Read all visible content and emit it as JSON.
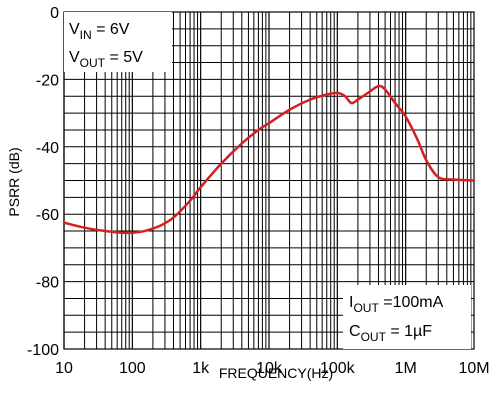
{
  "chart_data": {
    "type": "line",
    "xlabel": "FREQUENCY(Hz)",
    "ylabel": "PSRR (dB)",
    "x_scale": "log",
    "xlim": [
      10,
      10000000
    ],
    "ylim": [
      -100,
      0
    ],
    "grid": true,
    "x_ticks": [
      {
        "value": 10,
        "label": "10"
      },
      {
        "value": 100,
        "label": "100"
      },
      {
        "value": 1000,
        "label": "1k"
      },
      {
        "value": 10000,
        "label": "10k"
      },
      {
        "value": 100000,
        "label": "100k"
      },
      {
        "value": 1000000,
        "label": "1M"
      },
      {
        "value": 10000000,
        "label": "10M"
      }
    ],
    "y_ticks": [
      {
        "value": 0,
        "label": "0"
      },
      {
        "value": -20,
        "label": "-20"
      },
      {
        "value": -40,
        "label": "-40"
      },
      {
        "value": -60,
        "label": "-60"
      },
      {
        "value": -80,
        "label": "-80"
      },
      {
        "value": -100,
        "label": "-100"
      }
    ],
    "series": [
      {
        "color": "#d62020",
        "x": [
          10,
          20,
          40,
          70,
          100,
          150,
          250,
          400,
          700,
          1000,
          2000,
          4000,
          7000,
          10000,
          20000,
          40000,
          70000,
          100000,
          130000,
          160000,
          200000,
          280000,
          400000,
          500000,
          700000,
          1000000,
          1500000,
          2000000,
          3000000,
          5000000,
          10000000
        ],
        "y": [
          -62.5,
          -64,
          -65,
          -65.5,
          -65.5,
          -65,
          -63.5,
          -61,
          -56,
          -52,
          -45,
          -39,
          -35,
          -33,
          -29,
          -26,
          -24.5,
          -24,
          -25,
          -27,
          -26,
          -24,
          -22,
          -23,
          -27,
          -31,
          -38,
          -44,
          -49,
          -49.7,
          -50
        ]
      }
    ],
    "annotations": {
      "top_left": {
        "line1": {
          "main": "V",
          "sub": "IN",
          "rest": " = 6V"
        },
        "line2": {
          "main": "V",
          "sub": "OUT",
          "rest": " = 5V"
        }
      },
      "bottom_right": {
        "line1": {
          "main": "I",
          "sub": "OUT",
          "rest": " =100mA"
        },
        "line2": {
          "main": "C",
          "sub": "OUT",
          "rest": " = 1µF"
        }
      }
    }
  }
}
